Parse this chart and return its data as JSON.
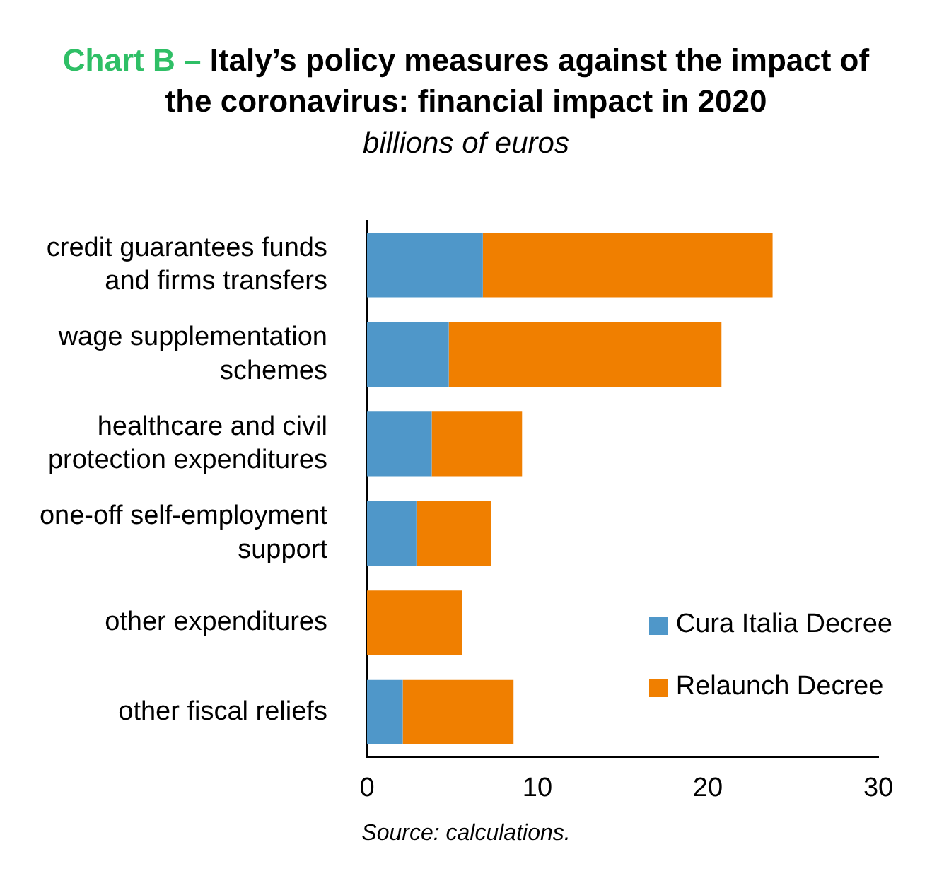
{
  "chart_data": {
    "type": "bar",
    "orientation": "horizontal",
    "stacked": true,
    "title": "Chart B – Italy’s policy measures against the impact of the coronavirus: financial impact in 2020",
    "subtitle": "billions of euros",
    "categories": [
      "credit guarantees funds and firms transfers",
      "wage supplementation schemes",
      "healthcare and civil protection expenditures",
      "one-off self-employment support",
      "other expenditures",
      "other fiscal reliefs"
    ],
    "series": [
      {
        "name": "Cura Italia Decree",
        "color": "#4f97c9",
        "values": [
          6.8,
          4.8,
          3.8,
          2.9,
          0,
          2.1
        ]
      },
      {
        "name": "Relaunch Decree",
        "color": "#f07f00",
        "values": [
          17.0,
          16.0,
          5.3,
          4.4,
          5.6,
          6.5
        ]
      }
    ],
    "xlim": [
      0,
      30
    ],
    "xticks": [
      0,
      10,
      20,
      30
    ],
    "grid": false,
    "legend": "bottom right",
    "annotations": [
      "Source: calculations."
    ]
  }
}
